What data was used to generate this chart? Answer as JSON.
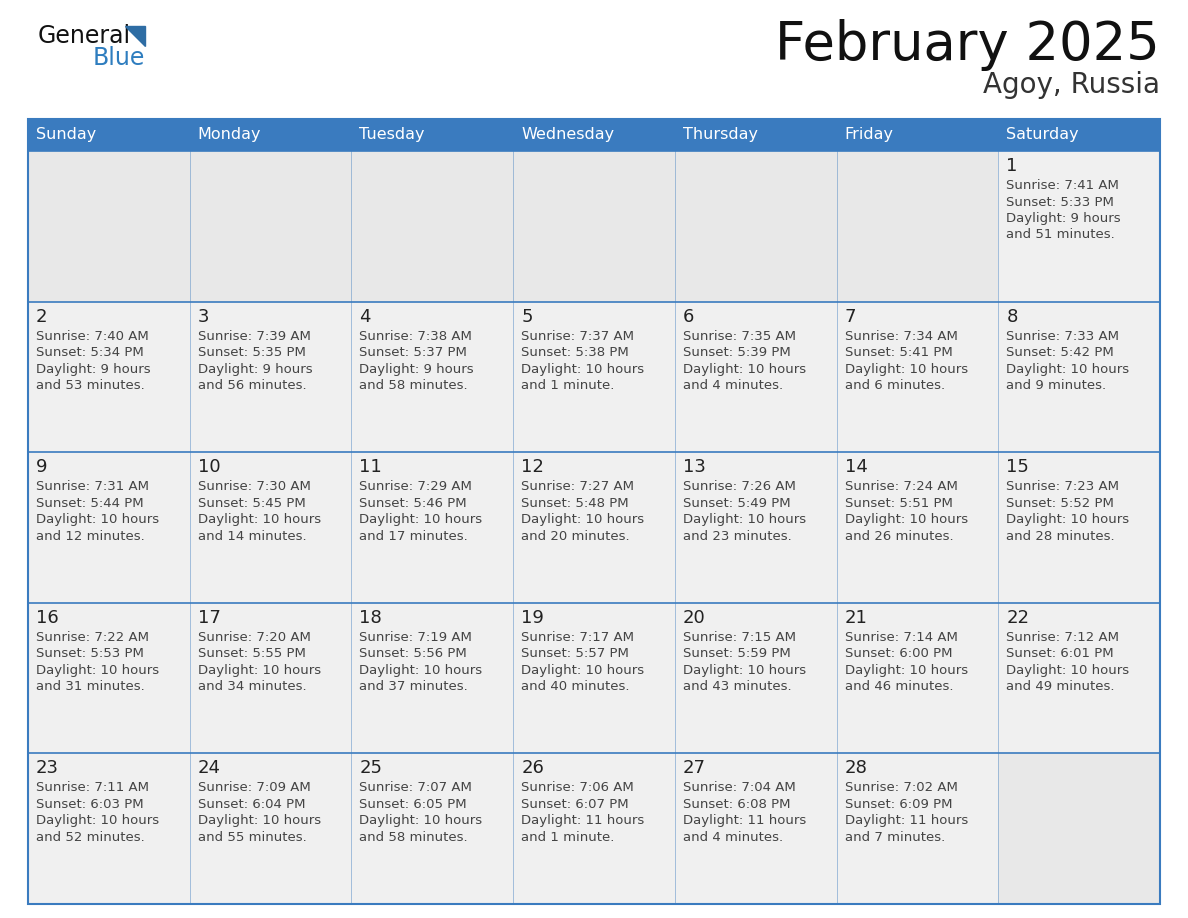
{
  "title": "February 2025",
  "subtitle": "Agoy, Russia",
  "days_of_week": [
    "Sunday",
    "Monday",
    "Tuesday",
    "Wednesday",
    "Thursday",
    "Friday",
    "Saturday"
  ],
  "header_bg": "#3a7bbf",
  "header_text_color": "#ffffff",
  "empty_cell_bg": "#e8e8e8",
  "filled_cell_bg": "#f0f0f0",
  "cell_border_color": "#3a7bbf",
  "day_number_color": "#222222",
  "info_text_color": "#444444",
  "title_color": "#111111",
  "subtitle_color": "#333333",
  "logo_general_color": "#111111",
  "logo_blue_color": "#2e7dbf",
  "logo_triangle_color": "#2e6da4",
  "calendar": [
    [
      null,
      null,
      null,
      null,
      null,
      null,
      {
        "day": "1",
        "sunrise": "7:41 AM",
        "sunset": "5:33 PM",
        "daylight_l1": "Daylight: 9 hours",
        "daylight_l2": "and 51 minutes."
      }
    ],
    [
      {
        "day": "2",
        "sunrise": "7:40 AM",
        "sunset": "5:34 PM",
        "daylight_l1": "Daylight: 9 hours",
        "daylight_l2": "and 53 minutes."
      },
      {
        "day": "3",
        "sunrise": "7:39 AM",
        "sunset": "5:35 PM",
        "daylight_l1": "Daylight: 9 hours",
        "daylight_l2": "and 56 minutes."
      },
      {
        "day": "4",
        "sunrise": "7:38 AM",
        "sunset": "5:37 PM",
        "daylight_l1": "Daylight: 9 hours",
        "daylight_l2": "and 58 minutes."
      },
      {
        "day": "5",
        "sunrise": "7:37 AM",
        "sunset": "5:38 PM",
        "daylight_l1": "Daylight: 10 hours",
        "daylight_l2": "and 1 minute."
      },
      {
        "day": "6",
        "sunrise": "7:35 AM",
        "sunset": "5:39 PM",
        "daylight_l1": "Daylight: 10 hours",
        "daylight_l2": "and 4 minutes."
      },
      {
        "day": "7",
        "sunrise": "7:34 AM",
        "sunset": "5:41 PM",
        "daylight_l1": "Daylight: 10 hours",
        "daylight_l2": "and 6 minutes."
      },
      {
        "day": "8",
        "sunrise": "7:33 AM",
        "sunset": "5:42 PM",
        "daylight_l1": "Daylight: 10 hours",
        "daylight_l2": "and 9 minutes."
      }
    ],
    [
      {
        "day": "9",
        "sunrise": "7:31 AM",
        "sunset": "5:44 PM",
        "daylight_l1": "Daylight: 10 hours",
        "daylight_l2": "and 12 minutes."
      },
      {
        "day": "10",
        "sunrise": "7:30 AM",
        "sunset": "5:45 PM",
        "daylight_l1": "Daylight: 10 hours",
        "daylight_l2": "and 14 minutes."
      },
      {
        "day": "11",
        "sunrise": "7:29 AM",
        "sunset": "5:46 PM",
        "daylight_l1": "Daylight: 10 hours",
        "daylight_l2": "and 17 minutes."
      },
      {
        "day": "12",
        "sunrise": "7:27 AM",
        "sunset": "5:48 PM",
        "daylight_l1": "Daylight: 10 hours",
        "daylight_l2": "and 20 minutes."
      },
      {
        "day": "13",
        "sunrise": "7:26 AM",
        "sunset": "5:49 PM",
        "daylight_l1": "Daylight: 10 hours",
        "daylight_l2": "and 23 minutes."
      },
      {
        "day": "14",
        "sunrise": "7:24 AM",
        "sunset": "5:51 PM",
        "daylight_l1": "Daylight: 10 hours",
        "daylight_l2": "and 26 minutes."
      },
      {
        "day": "15",
        "sunrise": "7:23 AM",
        "sunset": "5:52 PM",
        "daylight_l1": "Daylight: 10 hours",
        "daylight_l2": "and 28 minutes."
      }
    ],
    [
      {
        "day": "16",
        "sunrise": "7:22 AM",
        "sunset": "5:53 PM",
        "daylight_l1": "Daylight: 10 hours",
        "daylight_l2": "and 31 minutes."
      },
      {
        "day": "17",
        "sunrise": "7:20 AM",
        "sunset": "5:55 PM",
        "daylight_l1": "Daylight: 10 hours",
        "daylight_l2": "and 34 minutes."
      },
      {
        "day": "18",
        "sunrise": "7:19 AM",
        "sunset": "5:56 PM",
        "daylight_l1": "Daylight: 10 hours",
        "daylight_l2": "and 37 minutes."
      },
      {
        "day": "19",
        "sunrise": "7:17 AM",
        "sunset": "5:57 PM",
        "daylight_l1": "Daylight: 10 hours",
        "daylight_l2": "and 40 minutes."
      },
      {
        "day": "20",
        "sunrise": "7:15 AM",
        "sunset": "5:59 PM",
        "daylight_l1": "Daylight: 10 hours",
        "daylight_l2": "and 43 minutes."
      },
      {
        "day": "21",
        "sunrise": "7:14 AM",
        "sunset": "6:00 PM",
        "daylight_l1": "Daylight: 10 hours",
        "daylight_l2": "and 46 minutes."
      },
      {
        "day": "22",
        "sunrise": "7:12 AM",
        "sunset": "6:01 PM",
        "daylight_l1": "Daylight: 10 hours",
        "daylight_l2": "and 49 minutes."
      }
    ],
    [
      {
        "day": "23",
        "sunrise": "7:11 AM",
        "sunset": "6:03 PM",
        "daylight_l1": "Daylight: 10 hours",
        "daylight_l2": "and 52 minutes."
      },
      {
        "day": "24",
        "sunrise": "7:09 AM",
        "sunset": "6:04 PM",
        "daylight_l1": "Daylight: 10 hours",
        "daylight_l2": "and 55 minutes."
      },
      {
        "day": "25",
        "sunrise": "7:07 AM",
        "sunset": "6:05 PM",
        "daylight_l1": "Daylight: 10 hours",
        "daylight_l2": "and 58 minutes."
      },
      {
        "day": "26",
        "sunrise": "7:06 AM",
        "sunset": "6:07 PM",
        "daylight_l1": "Daylight: 11 hours",
        "daylight_l2": "and 1 minute."
      },
      {
        "day": "27",
        "sunrise": "7:04 AM",
        "sunset": "6:08 PM",
        "daylight_l1": "Daylight: 11 hours",
        "daylight_l2": "and 4 minutes."
      },
      {
        "day": "28",
        "sunrise": "7:02 AM",
        "sunset": "6:09 PM",
        "daylight_l1": "Daylight: 11 hours",
        "daylight_l2": "and 7 minutes."
      },
      null
    ]
  ],
  "figsize": [
    11.88,
    9.18
  ],
  "dpi": 100
}
